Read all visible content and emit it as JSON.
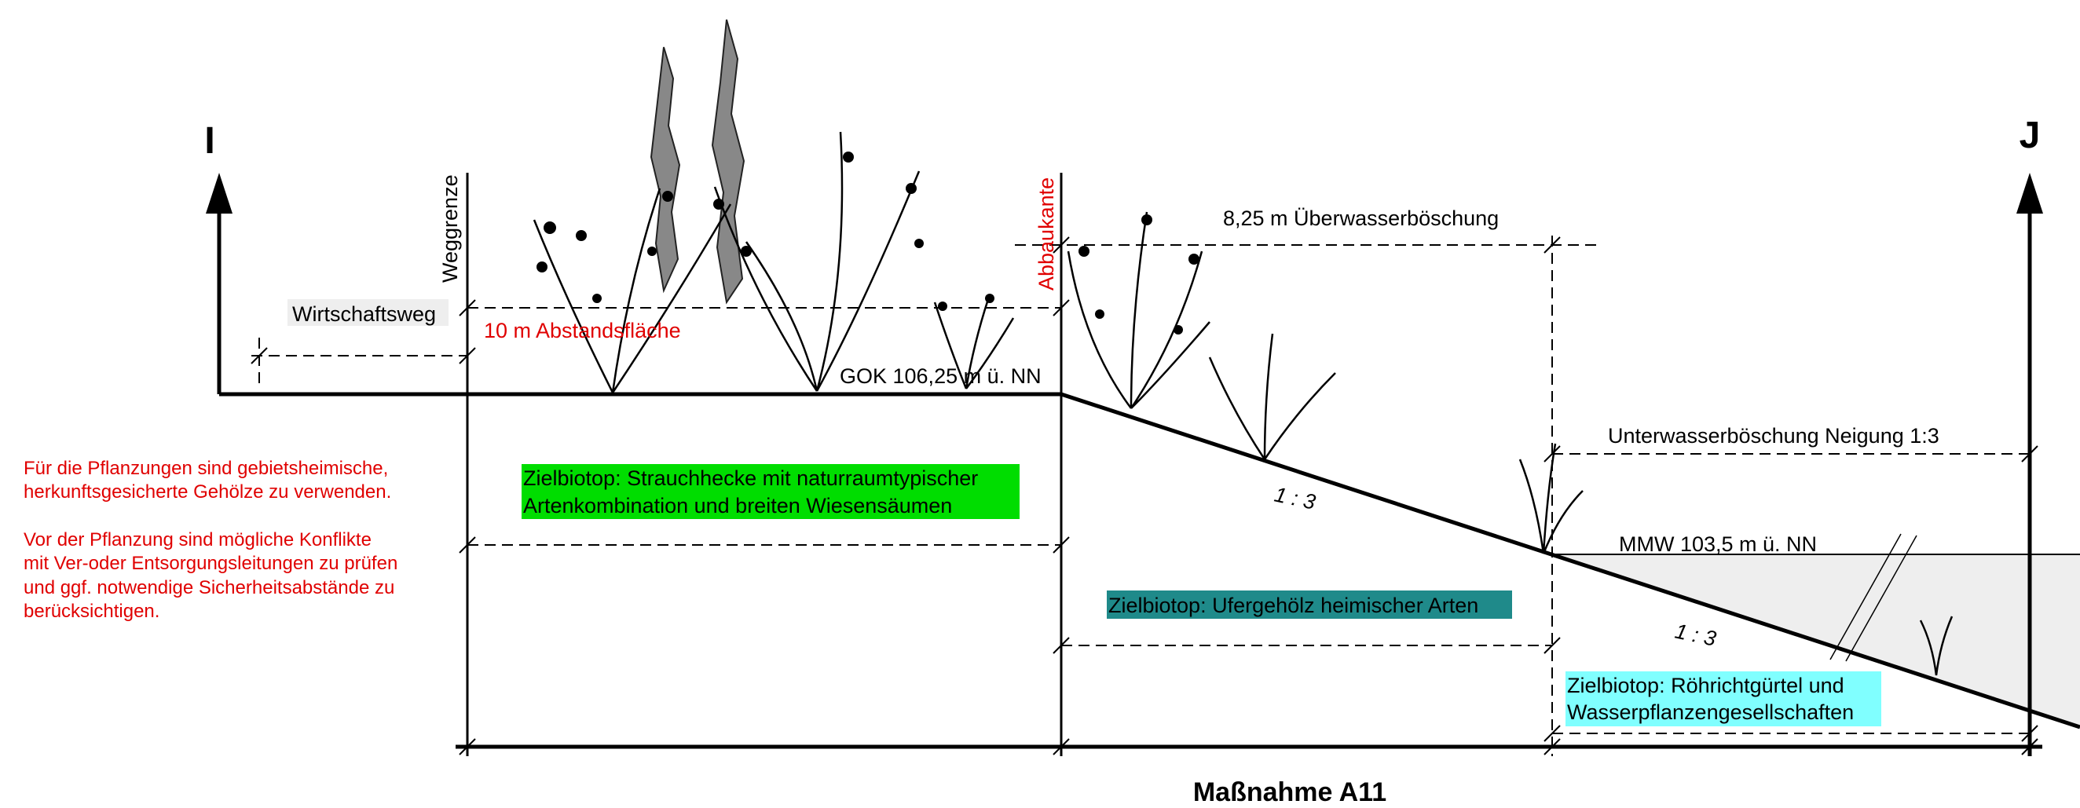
{
  "markers": [
    "I",
    "J"
  ],
  "labels": {
    "weggrenze": "Weggrenze",
    "abbaukante": "Abbaukante",
    "wirtschaftsweg": "Wirtschaftsweg",
    "abstand": "10 m Abstandsfläche",
    "gok": "GOK 106,25 m ü. NN",
    "ueberwasser": "8,25 m Überwasserböschung",
    "unterwasser": "Unterwasserböschung Neigung 1:3",
    "mmw": "MMW 103,5 m ü. NN",
    "slopes": [
      "1 : 3",
      "1 : 3"
    ]
  },
  "biotopes": [
    {
      "lines": [
        "Zielbiotop: Strauchhecke mit naturraumtypischer",
        "Artenkombination und breiten Wiesensäumen"
      ]
    },
    {
      "lines": [
        "Zielbiotop: Ufergehölz heimischer Arten"
      ]
    },
    {
      "lines": [
        "Zielbiotop: Röhrichtgürtel und",
        "Wasserpflanzengesellschaften"
      ]
    }
  ],
  "notes": [
    [
      "Für die Pflanzungen sind gebietsheimische,",
      "herkunftsgesicherte Gehölze zu verwenden."
    ],
    [
      "Vor der Pflanzung sind mögliche Konflikte",
      "mit Ver-oder Entsorgungsleitungen zu prüfen",
      "und ggf. notwendige Sicherheitsabstände zu",
      "berücksichtigen."
    ]
  ],
  "title": "Maßnahme A11"
}
